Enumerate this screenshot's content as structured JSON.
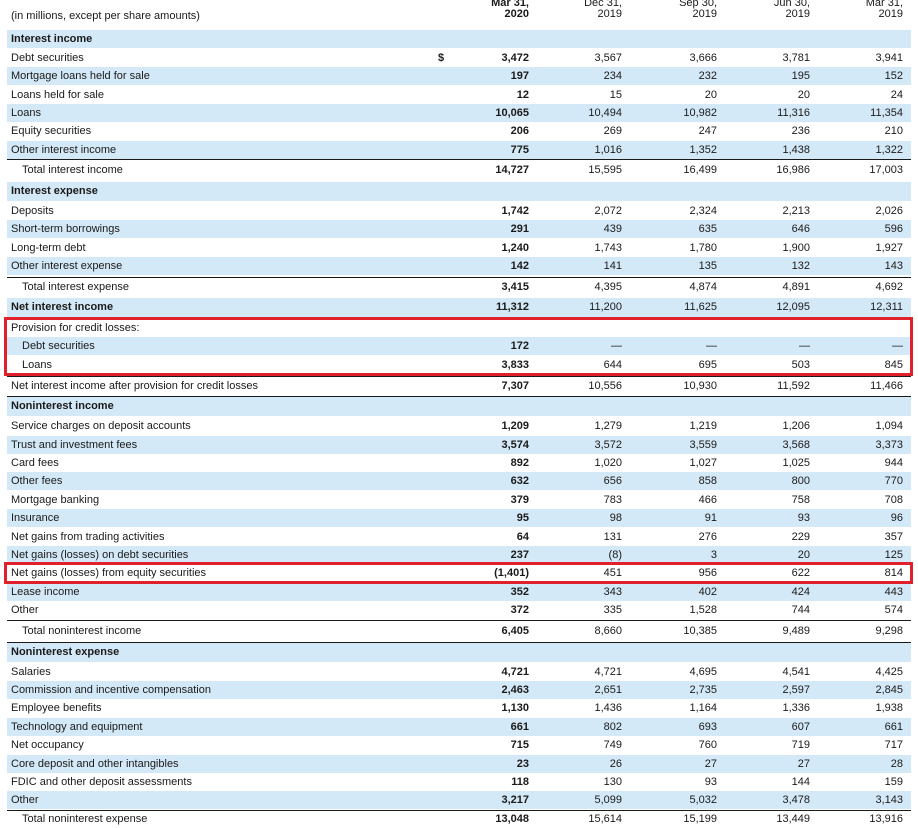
{
  "caption": "(in millions, except per share amounts)",
  "currency_symbol": "$",
  "columns": [
    {
      "line1": "Mar 31,",
      "line2": "2020"
    },
    {
      "line1": "Dec 31,",
      "line2": "2019"
    },
    {
      "line1": "Sep 30,",
      "line2": "2019"
    },
    {
      "line1": "Jun 30,",
      "line2": "2019"
    },
    {
      "line1": "Mar 31,",
      "line2": "2019"
    }
  ],
  "rows": [
    {
      "label": "Interest income",
      "kind": "section",
      "values": []
    },
    {
      "label": "Debt securities",
      "values": [
        "3,472",
        "3,567",
        "3,666",
        "3,781",
        "3,941"
      ],
      "currency": true
    },
    {
      "label": "Mortgage loans held for sale",
      "values": [
        "197",
        "234",
        "232",
        "195",
        "152"
      ]
    },
    {
      "label": "Loans held for sale",
      "values": [
        "12",
        "15",
        "20",
        "20",
        "24"
      ]
    },
    {
      "label": "Loans",
      "values": [
        "10,065",
        "10,494",
        "10,982",
        "11,316",
        "11,354"
      ]
    },
    {
      "label": "Equity securities",
      "values": [
        "206",
        "269",
        "247",
        "236",
        "210"
      ]
    },
    {
      "label": "Other interest income",
      "values": [
        "775",
        "1,016",
        "1,352",
        "1,438",
        "1,322"
      ]
    },
    {
      "label": "Total interest income",
      "kind": "total",
      "values": [
        "14,727",
        "15,595",
        "16,499",
        "16,986",
        "17,003"
      ]
    },
    {
      "label": "Interest expense",
      "kind": "section",
      "values": []
    },
    {
      "label": "Deposits",
      "values": [
        "1,742",
        "2,072",
        "2,324",
        "2,213",
        "2,026"
      ]
    },
    {
      "label": "Short-term borrowings",
      "values": [
        "291",
        "439",
        "635",
        "646",
        "596"
      ]
    },
    {
      "label": "Long-term debt",
      "values": [
        "1,240",
        "1,743",
        "1,780",
        "1,900",
        "1,927"
      ]
    },
    {
      "label": "Other interest expense",
      "values": [
        "142",
        "141",
        "135",
        "132",
        "143"
      ]
    },
    {
      "label": "Total interest expense",
      "kind": "total",
      "values": [
        "3,415",
        "4,395",
        "4,874",
        "4,891",
        "4,692"
      ]
    },
    {
      "label": "Net interest income",
      "kind": "net",
      "values": [
        "11,312",
        "11,200",
        "11,625",
        "12,095",
        "12,311"
      ]
    },
    {
      "label": "Provision for credit losses:",
      "kind": "subhead",
      "values": []
    },
    {
      "label": "Debt securities",
      "kind": "indent",
      "values": [
        "172",
        "—",
        "—",
        "—",
        "—"
      ]
    },
    {
      "label": "Loans",
      "kind": "indent",
      "values": [
        "3,833",
        "644",
        "695",
        "503",
        "845"
      ]
    },
    {
      "label": "Net interest income after provision for credit losses",
      "kind": "after",
      "values": [
        "7,307",
        "10,556",
        "10,930",
        "11,592",
        "11,466"
      ]
    },
    {
      "label": "Noninterest income",
      "kind": "section",
      "values": []
    },
    {
      "label": "Service charges on deposit accounts",
      "values": [
        "1,209",
        "1,279",
        "1,219",
        "1,206",
        "1,094"
      ]
    },
    {
      "label": "Trust and investment fees",
      "values": [
        "3,574",
        "3,572",
        "3,559",
        "3,568",
        "3,373"
      ]
    },
    {
      "label": "Card fees",
      "values": [
        "892",
        "1,020",
        "1,027",
        "1,025",
        "944"
      ]
    },
    {
      "label": "Other fees",
      "values": [
        "632",
        "656",
        "858",
        "800",
        "770"
      ]
    },
    {
      "label": "Mortgage banking",
      "values": [
        "379",
        "783",
        "466",
        "758",
        "708"
      ]
    },
    {
      "label": "Insurance",
      "values": [
        "95",
        "98",
        "91",
        "93",
        "96"
      ]
    },
    {
      "label": "Net gains from trading activities",
      "values": [
        "64",
        "131",
        "276",
        "229",
        "357"
      ]
    },
    {
      "label": "Net gains (losses) on debt securities",
      "values": [
        "237",
        "(8)",
        "3",
        "20",
        "125"
      ]
    },
    {
      "label": "Net gains (losses) from equity securities",
      "values": [
        "(1,401)",
        "451",
        "956",
        "622",
        "814"
      ]
    },
    {
      "label": "Lease income",
      "values": [
        "352",
        "343",
        "402",
        "424",
        "443"
      ]
    },
    {
      "label": "Other",
      "values": [
        "372",
        "335",
        "1,528",
        "744",
        "574"
      ]
    },
    {
      "label": "Total noninterest income",
      "kind": "total",
      "values": [
        "6,405",
        "8,660",
        "10,385",
        "9,489",
        "9,298"
      ]
    },
    {
      "label": "Noninterest expense",
      "kind": "section",
      "values": []
    },
    {
      "label": "Salaries",
      "values": [
        "4,721",
        "4,721",
        "4,695",
        "4,541",
        "4,425"
      ]
    },
    {
      "label": "Commission and incentive compensation",
      "values": [
        "2,463",
        "2,651",
        "2,735",
        "2,597",
        "2,845"
      ]
    },
    {
      "label": "Employee benefits",
      "values": [
        "1,130",
        "1,436",
        "1,164",
        "1,336",
        "1,938"
      ]
    },
    {
      "label": "Technology and equipment",
      "values": [
        "661",
        "802",
        "693",
        "607",
        "661"
      ]
    },
    {
      "label": "Net occupancy",
      "values": [
        "715",
        "749",
        "760",
        "719",
        "717"
      ]
    },
    {
      "label": "Core deposit and other intangibles",
      "values": [
        "23",
        "26",
        "27",
        "27",
        "28"
      ]
    },
    {
      "label": "FDIC and other deposit assessments",
      "values": [
        "118",
        "130",
        "93",
        "144",
        "159"
      ]
    },
    {
      "label": "Other",
      "values": [
        "3,217",
        "5,099",
        "5,032",
        "3,478",
        "3,143"
      ]
    },
    {
      "label": "Total noninterest expense",
      "kind": "total",
      "values": [
        "13,048",
        "15,614",
        "15,199",
        "13,449",
        "13,916"
      ]
    }
  ],
  "highlights": [
    {
      "name": "provision-for-credit-losses",
      "start_row": 15,
      "end_row": 17
    },
    {
      "name": "equity-securities-gains",
      "start_row": 28,
      "end_row": 28
    }
  ]
}
